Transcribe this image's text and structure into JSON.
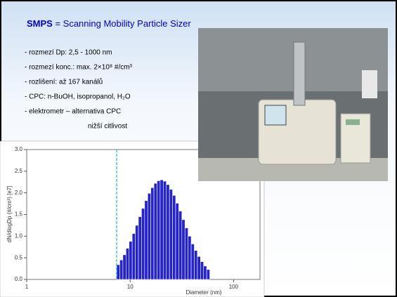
{
  "slide": {
    "title_bold": "SMPS",
    "title_rest": " = Scanning Mobility Particle Sizer",
    "bullets": [
      "- rozmezí Dp: 2,5 - 1000 nm",
      "- rozmezí konc.: max. 2×10⁸ #/cm³",
      "- rozlišení: až 167 kanálů",
      "- CPC: n-BuOH, isopropanol, H₂O",
      "- elektrometr – alternativa CPC"
    ],
    "bullet_note": "nižší citlivost"
  },
  "chart_data": {
    "type": "histogram",
    "xlabel": "Diameter (nm)",
    "ylabel": "dN/dlogDp (#/cm³) [e7]",
    "color": "#2424c8",
    "marker_color": "#20b8c0",
    "marker_x": 7.4,
    "log_x": true,
    "xlim": [
      1,
      180
    ],
    "xticks": [
      1,
      10,
      100
    ],
    "ylim": [
      0,
      3
    ],
    "yticks": [
      {
        "value": 0,
        "label": "0.0"
      },
      0.5,
      {
        "value": 1,
        "label": "1.0"
      },
      1.5,
      {
        "value": 2,
        "label": "2.0"
      },
      2.5,
      {
        "value": 3,
        "label": "3.0"
      }
    ],
    "bins": [
      7.41,
      7.94,
      8.51,
      9.12,
      9.77,
      10.47,
      11.22,
      12.02,
      12.88,
      13.8,
      14.79,
      15.85,
      16.98,
      18.2,
      19.5,
      20.89,
      22.39,
      23.99,
      25.7,
      27.54,
      29.51,
      31.62,
      33.88,
      36.31,
      38.9,
      41.69,
      44.67,
      47.86,
      51.29,
      54.95,
      58.88
    ],
    "values": [
      0.34,
      0.45,
      0.57,
      0.72,
      0.88,
      1.06,
      1.25,
      1.45,
      1.64,
      1.82,
      1.99,
      2.12,
      2.22,
      2.28,
      2.3,
      2.27,
      2.19,
      2.08,
      1.94,
      1.76,
      1.58,
      1.38,
      1.19,
      1.0,
      0.82,
      0.67,
      0.53,
      0.41,
      0.31,
      0.23
    ]
  }
}
